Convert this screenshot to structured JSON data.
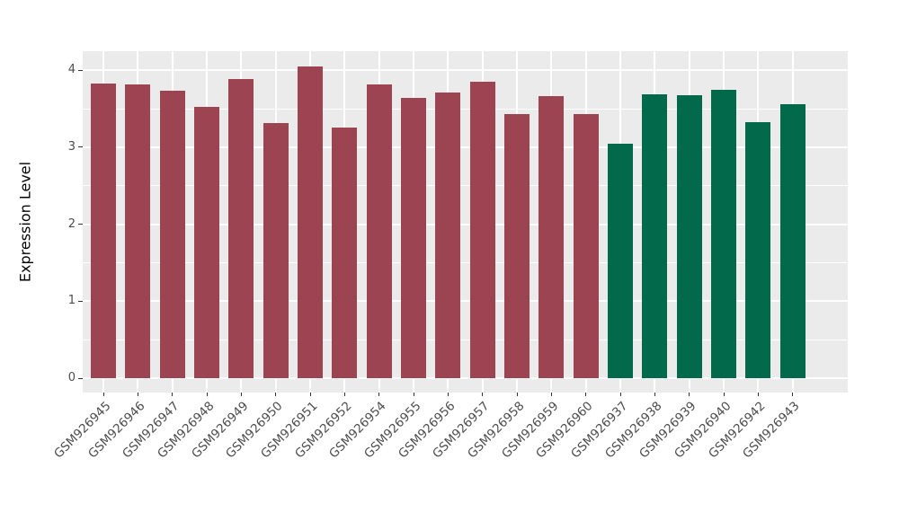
{
  "chart_data": {
    "type": "bar",
    "title": "",
    "xlabel": "",
    "ylabel": "Expression Level",
    "ylim": [
      0,
      4.25
    ],
    "yticks": [
      "0",
      "1",
      "2",
      "3",
      "4"
    ],
    "ytick_values": [
      0,
      1,
      2,
      3,
      4
    ],
    "yminor_values": [
      0.5,
      1.5,
      2.5,
      3.5
    ],
    "grid": "on",
    "legend": "none",
    "panel_bg": "#EBEBEB",
    "grid_color": "#FFFFFF",
    "axis_text_color": "#4D4D4D",
    "axis_title_color": "#000000",
    "categories": [
      "GSM926945",
      "GSM926946",
      "GSM926947",
      "GSM926948",
      "GSM926949",
      "GSM926950",
      "GSM926951",
      "GSM926952",
      "GSM926954",
      "GSM926955",
      "GSM926956",
      "GSM926957",
      "GSM926958",
      "GSM926959",
      "GSM926960",
      "GSM926937",
      "GSM926938",
      "GSM926939",
      "GSM926940",
      "GSM926942",
      "GSM926943"
    ],
    "values": [
      3.83,
      3.81,
      3.73,
      3.52,
      3.88,
      3.31,
      4.05,
      3.26,
      3.81,
      3.64,
      3.71,
      3.85,
      3.43,
      3.66,
      3.43,
      3.04,
      3.69,
      3.68,
      3.75,
      3.32,
      3.56
    ],
    "bar_colors": [
      "#9C4452",
      "#9C4452",
      "#9C4452",
      "#9C4452",
      "#9C4452",
      "#9C4452",
      "#9C4452",
      "#9C4452",
      "#9C4452",
      "#9C4452",
      "#9C4452",
      "#9C4452",
      "#9C4452",
      "#9C4452",
      "#9C4452",
      "#02694A",
      "#02694A",
      "#02694A",
      "#02694A",
      "#02694A",
      "#02694A"
    ],
    "group_palette": {
      "left_group_color": "#9C4452",
      "right_group_color": "#02694A"
    }
  }
}
